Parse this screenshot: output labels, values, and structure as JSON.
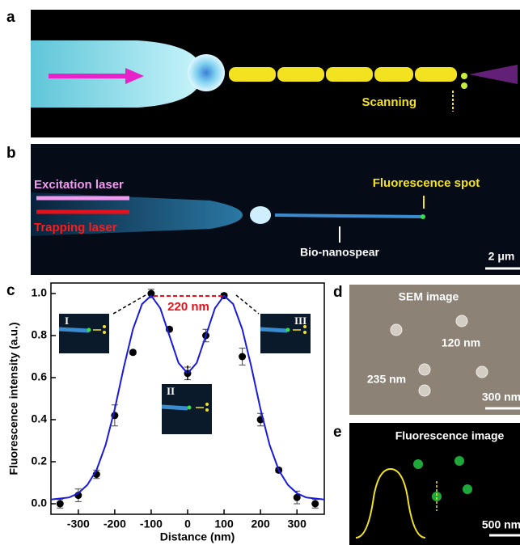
{
  "panels": {
    "a": {
      "label": "a",
      "scanning": "Scanning"
    },
    "b": {
      "label": "b",
      "excitation": "Excitation laser",
      "trapping": "Trapping laser",
      "spot": "Fluorescence spot",
      "spear": "Bio-nanospear",
      "scale": "2 μm"
    },
    "c": {
      "label": "c"
    },
    "d": {
      "label": "d",
      "title": "SEM image",
      "width": "120 nm",
      "length": "235 nm",
      "scale": "300 nm"
    },
    "e": {
      "label": "e",
      "title": "Fluorescence image",
      "scale": "500 nm"
    }
  },
  "chart_data": {
    "type": "scatter",
    "xlabel": "Distance (nm)",
    "ylabel": "Fluorescence intensity (a.u.)",
    "xlim": [
      -375,
      375
    ],
    "xticks": [
      -300,
      -200,
      -100,
      0,
      100,
      200,
      300
    ],
    "ylim": [
      -0.05,
      1.05
    ],
    "yticks": [
      {
        "value": 0,
        "label": "0.0"
      },
      {
        "value": 0.2,
        "label": "0.2"
      },
      {
        "value": 0.4,
        "label": "0.4"
      },
      {
        "value": 0.6,
        "label": "0.6"
      },
      {
        "value": 0.8,
        "label": "0.8"
      },
      {
        "value": 1,
        "label": "1.0"
      }
    ],
    "series": [
      {
        "type": "scatter",
        "color": "#000000",
        "x": [
          -350,
          -300,
          -250,
          -200,
          -150,
          -100,
          -50,
          0,
          50,
          100,
          150,
          200,
          250,
          300,
          350
        ],
        "values": [
          0.0,
          0.04,
          0.14,
          0.42,
          0.72,
          1.0,
          0.83,
          0.62,
          0.8,
          0.99,
          0.7,
          0.4,
          0.16,
          0.03,
          0.0
        ],
        "errors": [
          0.02,
          0.03,
          0.02,
          0.05,
          0.01,
          0.02,
          0.01,
          0.03,
          0.03,
          0.01,
          0.04,
          0.03,
          0.01,
          0.03,
          0.02
        ]
      },
      {
        "type": "line",
        "color": "#1a1adf",
        "x": [
          -375,
          -350,
          -325,
          -300,
          -275,
          -250,
          -225,
          -200,
          -175,
          -150,
          -125,
          -100,
          -75,
          -50,
          -25,
          0,
          25,
          50,
          75,
          100,
          125,
          150,
          175,
          200,
          225,
          250,
          275,
          300,
          325,
          350,
          375
        ],
        "values": [
          0.02,
          0.025,
          0.03,
          0.05,
          0.09,
          0.16,
          0.28,
          0.45,
          0.65,
          0.83,
          0.95,
          0.99,
          0.93,
          0.8,
          0.67,
          0.62,
          0.67,
          0.8,
          0.93,
          0.99,
          0.95,
          0.83,
          0.65,
          0.45,
          0.28,
          0.16,
          0.09,
          0.05,
          0.03,
          0.025,
          0.02
        ]
      }
    ],
    "annotations": {
      "gap": "220 nm",
      "inset1": "I",
      "inset2": "II",
      "inset3": "III"
    }
  }
}
